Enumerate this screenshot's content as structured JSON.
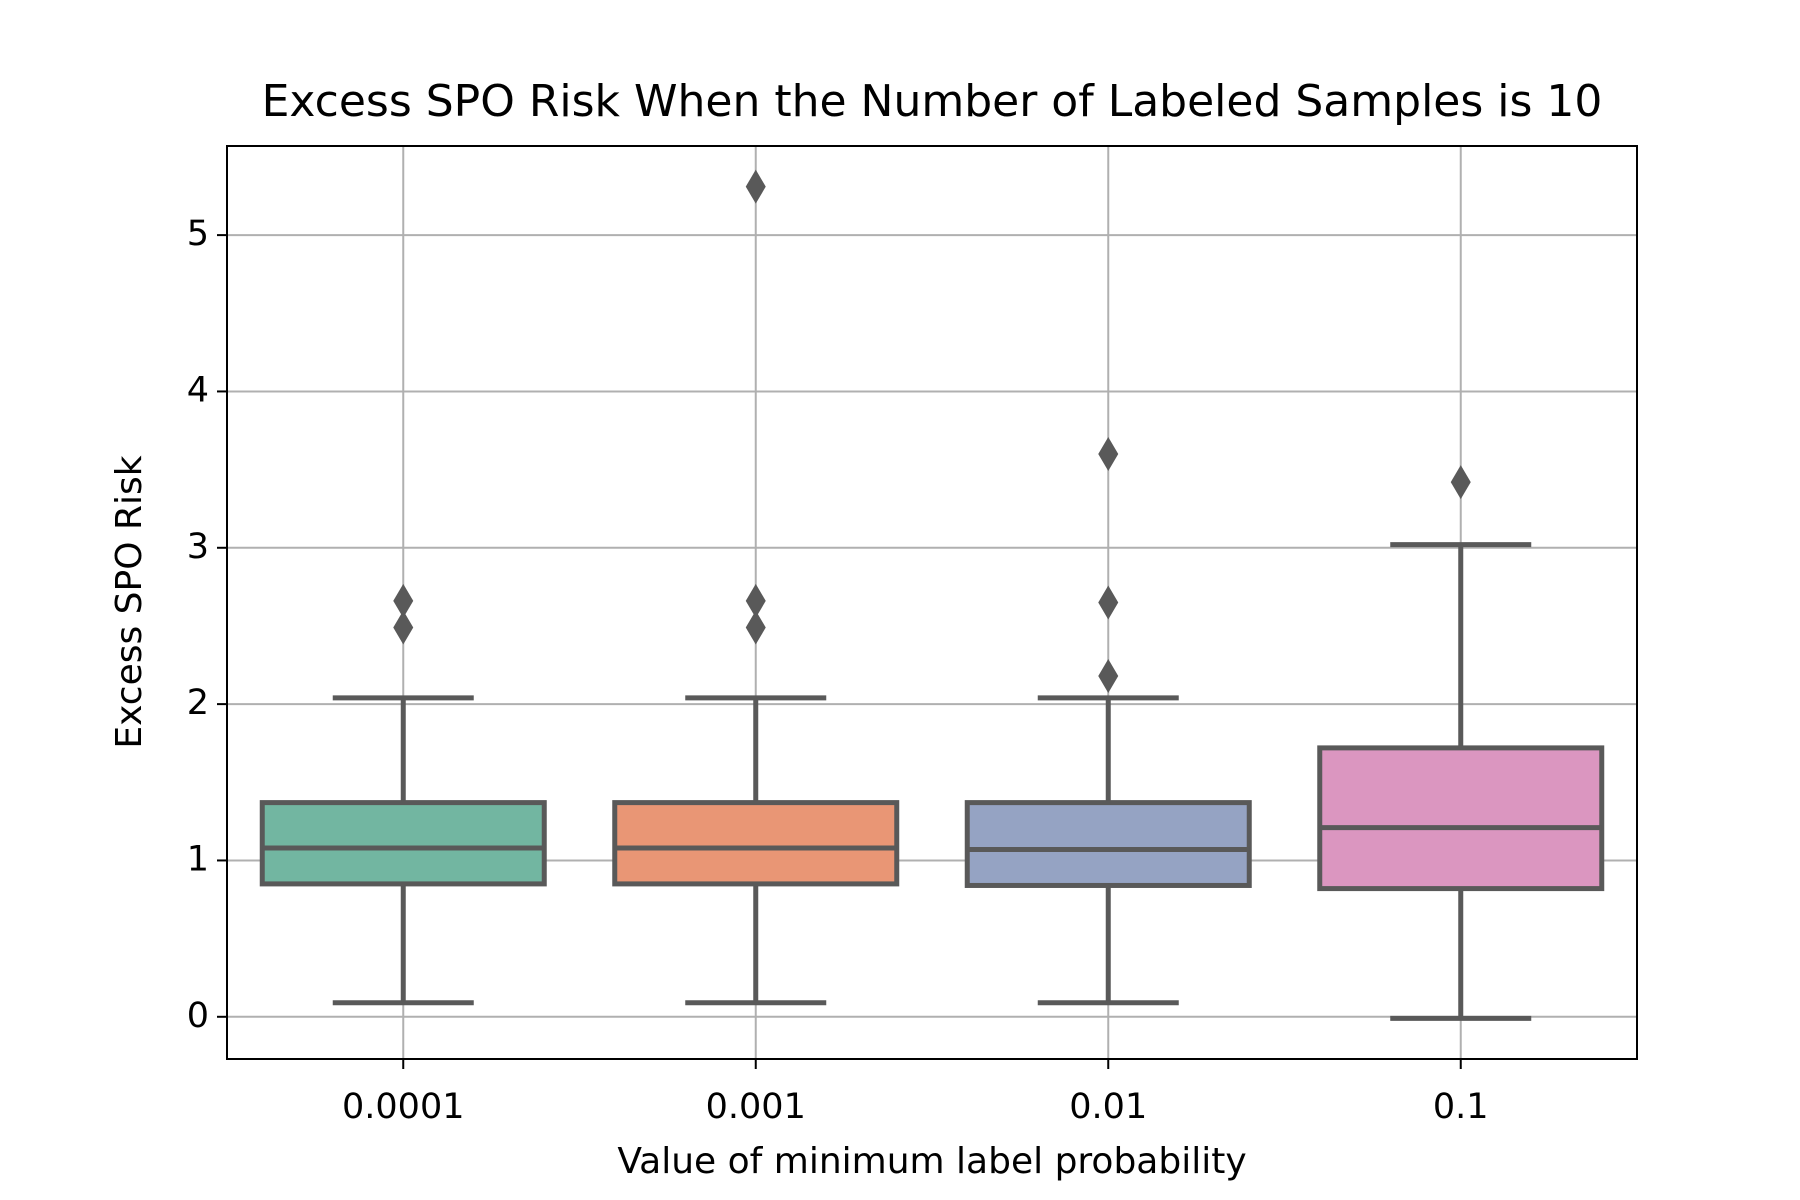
{
  "chart_data": {
    "type": "box",
    "title": "Excess SPO Risk When the Number of Labeled Samples is 10",
    "x_label": "Value of minimum label probability",
    "y_label": "Excess SPO Risk",
    "categories": [
      "0.0001",
      "0.001",
      "0.01",
      "0.1"
    ],
    "boxes": [
      {
        "whisker_low": 0.09,
        "q1": 0.85,
        "median": 1.08,
        "q3": 1.37,
        "whisker_high": 2.04,
        "outliers": [
          2.49,
          2.66
        ],
        "color": "#72b6a1"
      },
      {
        "whisker_low": 0.09,
        "q1": 0.85,
        "median": 1.08,
        "q3": 1.37,
        "whisker_high": 2.04,
        "outliers": [
          2.49,
          2.66,
          5.31
        ],
        "color": "#e99675"
      },
      {
        "whisker_low": 0.09,
        "q1": 0.84,
        "median": 1.07,
        "q3": 1.37,
        "whisker_high": 2.04,
        "outliers": [
          2.18,
          2.65,
          3.6
        ],
        "color": "#95a3c3"
      },
      {
        "whisker_low": -0.01,
        "q1": 0.82,
        "median": 1.21,
        "q3": 1.72,
        "whisker_high": 3.02,
        "outliers": [
          3.42
        ],
        "color": "#db96c0"
      }
    ],
    "edge_color": "#595959",
    "ylim": [
      -0.27,
      5.57
    ],
    "yticks": [
      0,
      1,
      2,
      3,
      4,
      5
    ],
    "grid": true
  }
}
